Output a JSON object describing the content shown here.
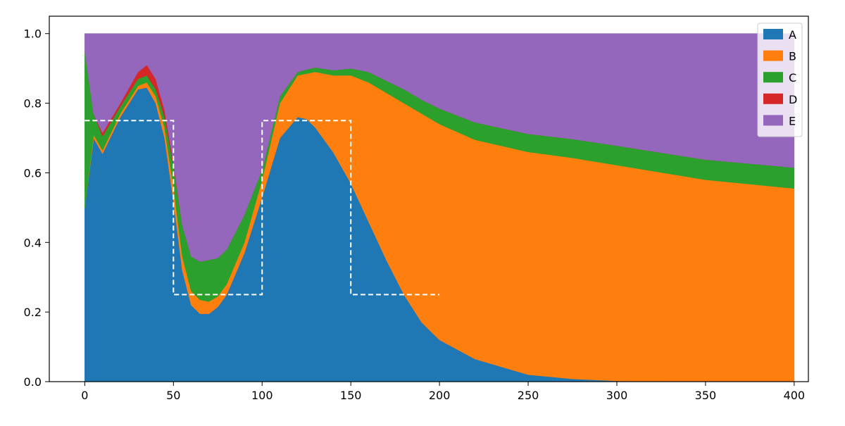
{
  "chart_data": {
    "type": "area",
    "stacked": true,
    "title": "",
    "xlabel": "",
    "ylabel": "",
    "xlim": [
      -20,
      408
    ],
    "ylim": [
      0.0,
      1.05
    ],
    "x_ticks": [
      0,
      50,
      100,
      150,
      200,
      250,
      300,
      350,
      400
    ],
    "x_tick_labels": [
      "0",
      "50",
      "100",
      "150",
      "200",
      "250",
      "300",
      "350",
      "400"
    ],
    "y_ticks": [
      0.0,
      0.2,
      0.4,
      0.6,
      0.8,
      1.0
    ],
    "y_tick_labels": [
      "0.0",
      "0.2",
      "0.4",
      "0.6",
      "0.8",
      "1.0"
    ],
    "grid": false,
    "legend_position": "top-right",
    "x": [
      0,
      5,
      10,
      20,
      30,
      35,
      40,
      45,
      50,
      55,
      60,
      65,
      70,
      75,
      80,
      90,
      100,
      110,
      120,
      125,
      130,
      140,
      150,
      160,
      170,
      180,
      190,
      200,
      220,
      250,
      275,
      300,
      350,
      400
    ],
    "series": [
      {
        "name": "A",
        "color": "#1f77b4",
        "values": [
          0.5,
          0.7,
          0.655,
          0.76,
          0.84,
          0.845,
          0.8,
          0.7,
          0.52,
          0.32,
          0.22,
          0.195,
          0.195,
          0.215,
          0.25,
          0.37,
          0.53,
          0.7,
          0.76,
          0.755,
          0.73,
          0.66,
          0.57,
          0.46,
          0.35,
          0.25,
          0.17,
          0.12,
          0.065,
          0.02,
          0.008,
          0.002,
          0.0,
          0.0
        ]
      },
      {
        "name": "B",
        "color": "#ff7f0e",
        "values": [
          0.0,
          0.01,
          0.01,
          0.01,
          0.01,
          0.015,
          0.02,
          0.03,
          0.04,
          0.04,
          0.04,
          0.04,
          0.035,
          0.03,
          0.03,
          0.03,
          0.05,
          0.1,
          0.12,
          0.13,
          0.16,
          0.22,
          0.31,
          0.4,
          0.48,
          0.55,
          0.6,
          0.62,
          0.63,
          0.64,
          0.635,
          0.62,
          0.58,
          0.555
        ]
      },
      {
        "name": "C",
        "color": "#2ca02c",
        "values": [
          0.45,
          0.06,
          0.04,
          0.02,
          0.02,
          0.02,
          0.02,
          0.03,
          0.06,
          0.09,
          0.1,
          0.11,
          0.12,
          0.11,
          0.1,
          0.08,
          0.03,
          0.02,
          0.01,
          0.012,
          0.013,
          0.015,
          0.02,
          0.03,
          0.035,
          0.04,
          0.04,
          0.045,
          0.05,
          0.052,
          0.054,
          0.056,
          0.058,
          0.06
        ]
      },
      {
        "name": "D",
        "color": "#d62728",
        "values": [
          0.0,
          0.0,
          0.01,
          0.01,
          0.02,
          0.03,
          0.03,
          0.02,
          0.01,
          0.0,
          0.0,
          0.0,
          0.0,
          0.0,
          0.0,
          0.0,
          0.0,
          0.0,
          0.0,
          0.0,
          0.0,
          0.0,
          0.0,
          0.0,
          0.0,
          0.0,
          0.0,
          0.0,
          0.0,
          0.0,
          0.0,
          0.0,
          0.0,
          0.0
        ]
      },
      {
        "name": "E",
        "color": "#9467bd",
        "values": [
          0.05,
          0.23,
          0.285,
          0.2,
          0.11,
          0.09,
          0.13,
          0.22,
          0.37,
          0.55,
          0.64,
          0.655,
          0.65,
          0.645,
          0.62,
          0.52,
          0.39,
          0.18,
          0.11,
          0.103,
          0.097,
          0.105,
          0.1,
          0.11,
          0.135,
          0.16,
          0.19,
          0.215,
          0.255,
          0.288,
          0.303,
          0.322,
          0.362,
          0.385
        ]
      }
    ],
    "step_line": {
      "color": "#ffffff",
      "style": "dashed",
      "x": [
        0,
        50,
        50,
        100,
        100,
        150,
        150,
        200
      ],
      "y": [
        0.75,
        0.75,
        0.25,
        0.25,
        0.75,
        0.75,
        0.25,
        0.25
      ]
    }
  }
}
